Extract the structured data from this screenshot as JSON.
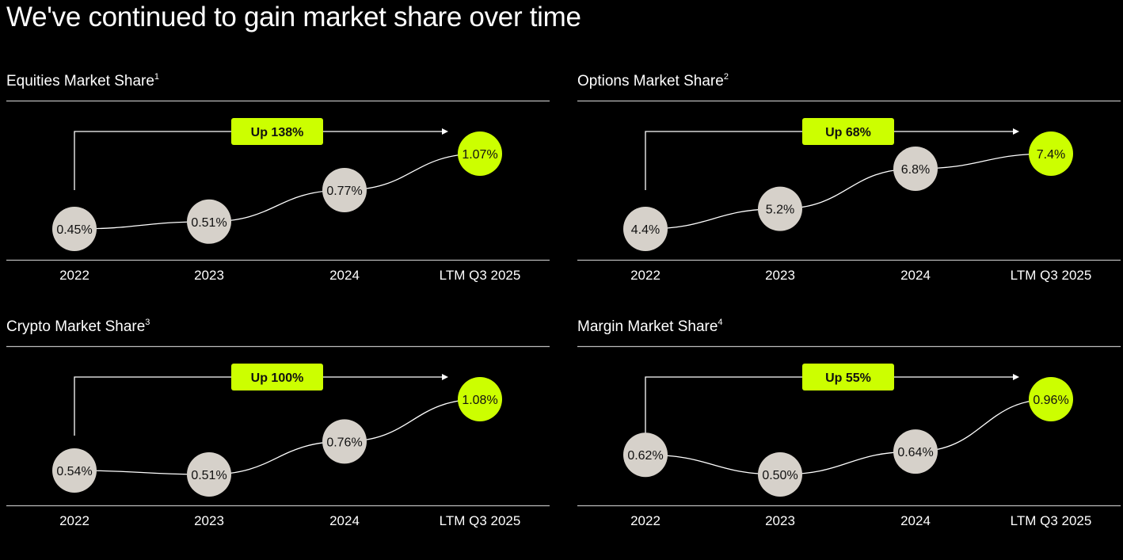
{
  "title": "We've continued to gain market share over time",
  "colors": {
    "accent": "#ccff00",
    "bubble": "#d6d1ca",
    "line": "#ffffff"
  },
  "chart_data": [
    {
      "type": "line",
      "title": "Equities Market Share",
      "footnote": "1",
      "categories": [
        "2022",
        "2023",
        "2024",
        "LTM Q3 2025"
      ],
      "values": [
        0.45,
        0.51,
        0.77,
        1.07
      ],
      "labels": [
        "0.45%",
        "0.51%",
        "0.77%",
        "1.07%"
      ],
      "badge": "Up 138%"
    },
    {
      "type": "line",
      "title": "Options Market Share",
      "footnote": "2",
      "categories": [
        "2022",
        "2023",
        "2024",
        "LTM Q3 2025"
      ],
      "values": [
        4.4,
        5.2,
        6.8,
        7.4
      ],
      "labels": [
        "4.4%",
        "5.2%",
        "6.8%",
        "7.4%"
      ],
      "badge": "Up 68%"
    },
    {
      "type": "line",
      "title": "Crypto Market Share",
      "footnote": "3",
      "categories": [
        "2022",
        "2023",
        "2024",
        "LTM Q3 2025"
      ],
      "values": [
        0.54,
        0.51,
        0.76,
        1.08
      ],
      "labels": [
        "0.54%",
        "0.51%",
        "0.76%",
        "1.08%"
      ],
      "badge": "Up 100%"
    },
    {
      "type": "line",
      "title": "Margin Market Share",
      "footnote": "4",
      "categories": [
        "2022",
        "2023",
        "2024",
        "LTM Q3 2025"
      ],
      "values": [
        0.62,
        0.5,
        0.64,
        0.96
      ],
      "labels": [
        "0.62%",
        "0.50%",
        "0.64%",
        "0.96%"
      ],
      "badge": "Up 55%"
    }
  ]
}
